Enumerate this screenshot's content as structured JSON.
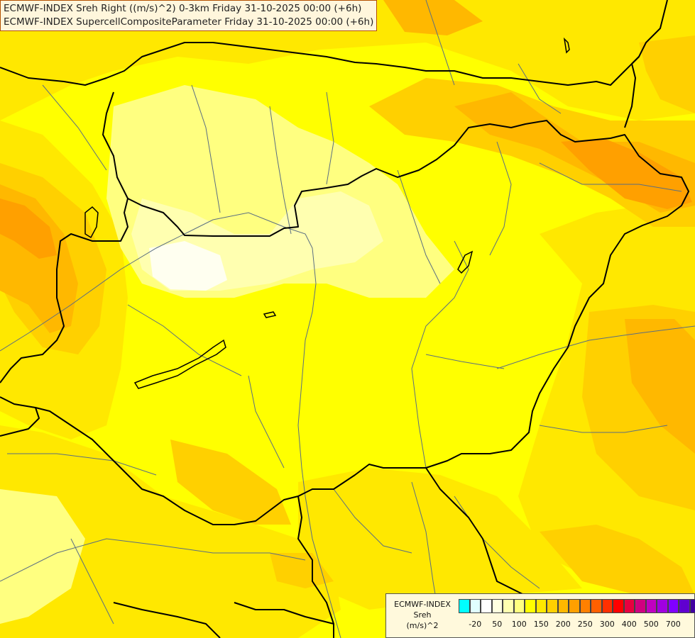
{
  "header": {
    "line1": "ECMWF-INDEX Sreh Right ((m/s)^2) 0-3km Friday 31-10-2025 00:00 (+6h)",
    "line2": "ECMWF-INDEX SupercellCompositeParameter Friday 31-10-2025 00:00 (+6h)"
  },
  "legend": {
    "title_lines": [
      "ECMWF-INDEX",
      "Sreh",
      "(m/s)^2"
    ],
    "colors": [
      "#00ffff",
      "#e0ffff",
      "#ffffff",
      "#ffffe0",
      "#ffffb0",
      "#ffff80",
      "#ffff00",
      "#ffe800",
      "#ffd000",
      "#ffb800",
      "#ffa000",
      "#ff8000",
      "#ff6000",
      "#ff3000",
      "#ff0000",
      "#e80040",
      "#d00080",
      "#c000c0",
      "#a000e0",
      "#8000ff",
      "#6000d0",
      "#4000a0",
      "#200080"
    ],
    "ticks": [
      {
        "label": "-20",
        "index": 1
      },
      {
        "label": "50",
        "index": 3
      },
      {
        "label": "100",
        "index": 5
      },
      {
        "label": "150",
        "index": 7
      },
      {
        "label": "200",
        "index": 9
      },
      {
        "label": "250",
        "index": 11
      },
      {
        "label": "300",
        "index": 13
      },
      {
        "label": "400",
        "index": 15
      },
      {
        "label": "500",
        "index": 17
      },
      {
        "label": "700",
        "index": 19
      }
    ]
  },
  "map": {
    "colors": {
      "base": "#ffff00",
      "light_yellow": "#ffff80",
      "pale": "#ffffb0",
      "very_pale": "#fffff0",
      "gold": "#ffe800",
      "amber": "#ffd000",
      "orange": "#ffb800",
      "dark_orange": "#ffa000",
      "deep_orange": "#ff8000",
      "border": "#000000",
      "river": "#5a6e82"
    }
  }
}
